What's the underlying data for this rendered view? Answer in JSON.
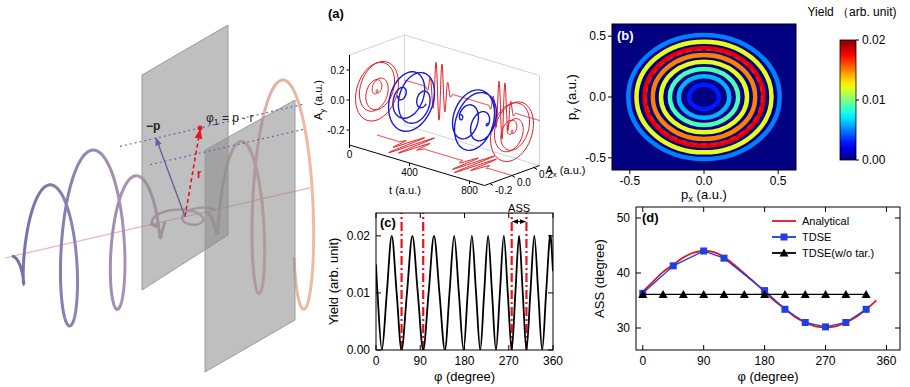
{
  "schematic": {
    "phase_label": {
      "base": "φ",
      "sub": "1",
      "suffix": " = p · r"
    },
    "minus_p": "−p",
    "r": "r"
  },
  "chart_data": [
    {
      "type": "line3d",
      "panel_label": "(a)",
      "xlabel": "t (a.u.)",
      "xlim": [
        0,
        900
      ],
      "xticks": [
        0,
        400,
        800
      ],
      "ylabel": {
        "base": "A",
        "sub": "x",
        "suffix": " (a.u.)"
      },
      "ylim": [
        -0.25,
        0.25
      ],
      "yticks": [
        -0.2,
        {
          "value": 0,
          "label": "0.0"
        },
        0.2
      ],
      "zlabel": {
        "base": "A",
        "sub": "y",
        "suffix": " (a.u.)"
      },
      "zlim": [
        -0.3,
        0.3
      ],
      "zticks": [
        -0.2,
        {
          "value": 0,
          "label": "0.0"
        },
        0.2
      ],
      "pulses": [
        {
          "center": 230,
          "duration": 200,
          "amplitude": 0.2,
          "period": 40,
          "helicity": 1,
          "color": "#1a1ad8"
        },
        {
          "center": 650,
          "duration": 200,
          "amplitude": 0.2,
          "period": 40,
          "helicity": -1,
          "color": "#1a1ad8"
        }
      ],
      "projections": {
        "color": "#e51c23"
      }
    },
    {
      "type": "heatmap",
      "panel_label": "(b)",
      "title": "Yield （arb. unit)",
      "xlabel": {
        "base": "p",
        "sub": "x",
        "suffix": " (a.u.)"
      },
      "ylabel": {
        "base": "p",
        "sub": "y",
        "suffix": " (a.u.)"
      },
      "xlim": [
        -0.62,
        0.62
      ],
      "xticks": [
        {
          "value": -0.5,
          "label": "-0.5"
        },
        {
          "value": 0,
          "label": "0.0"
        },
        {
          "value": 0.5,
          "label": "0.5"
        }
      ],
      "ylim": [
        -0.6,
        0.6
      ],
      "yticks": [
        {
          "value": -0.5,
          "label": "-0.5"
        },
        {
          "value": 0,
          "label": "0.0"
        },
        {
          "value": 0.5,
          "label": "0.5"
        }
      ],
      "rings": [
        {
          "radius": 0.1,
          "value": 0.003
        },
        {
          "radius": 0.17,
          "value": 0.006
        },
        {
          "radius": 0.23,
          "value": 0.009
        },
        {
          "radius": 0.29,
          "value": 0.012
        },
        {
          "radius": 0.345,
          "value": 0.015
        },
        {
          "radius": 0.4,
          "value": 0.018
        },
        {
          "radius": 0.455,
          "value": 0.012
        },
        {
          "radius": 0.51,
          "value": 0.005
        }
      ],
      "marker_circle": {
        "radius": 0.39,
        "color": "#e8141b",
        "line_style": "dashed"
      },
      "colorbar": {
        "range": [
          0,
          0.02
        ],
        "ticks": [
          {
            "value": 0,
            "label": "0.00"
          },
          {
            "value": 0.01,
            "label": "0.01"
          },
          {
            "value": 0.02,
            "label": "0.02"
          }
        ]
      }
    },
    {
      "type": "line",
      "panel_label": "(c)",
      "xlabel": "φ (degree)",
      "ylabel": "Yield (arb. unit)",
      "x": [
        0,
        3,
        12,
        22,
        32,
        42,
        52,
        63,
        74,
        85,
        96,
        107,
        118,
        129,
        140,
        149.5,
        159,
        168.5,
        178,
        186.5,
        195,
        203.5,
        212,
        220,
        228,
        236,
        244,
        252,
        260,
        268,
        276,
        283.5,
        291,
        298.5,
        306,
        314,
        322,
        330,
        338,
        346,
        354,
        360
      ],
      "values": [
        0.015,
        0.01,
        0,
        0.01,
        0.02,
        0.01,
        0,
        0.01,
        0.02,
        0.01,
        0,
        0.01,
        0.02,
        0.01,
        0,
        0.01,
        0.02,
        0.01,
        0,
        0.01,
        0.02,
        0.01,
        0,
        0.01,
        0.02,
        0.01,
        0,
        0.01,
        0.02,
        0.01,
        0,
        0.01,
        0.02,
        0.01,
        0,
        0.01,
        0.02,
        0.01,
        0,
        0.01,
        0.02,
        0.0138
      ],
      "color": "#000000",
      "line_style": "solid",
      "xlim": [
        0,
        360
      ],
      "xticks": [
        0,
        90,
        180,
        270,
        360
      ],
      "ylim": [
        0,
        0.024
      ],
      "yticks": [
        {
          "value": 0,
          "label": "0.00"
        },
        {
          "value": 0.01,
          "label": "0.01"
        },
        {
          "value": 0.02,
          "label": "0.02"
        }
      ],
      "vlines": {
        "x": [
          52,
          96,
          276,
          306
        ],
        "color": "#e8141b",
        "line_style": "dashdot"
      },
      "annotation": {
        "text": "ASS",
        "x": [
          276,
          306
        ],
        "y": 0.0225
      }
    },
    {
      "type": "line",
      "panel_label": "(d)",
      "xlabel": "φ (degree)",
      "ylabel": "ASS (degree)",
      "xlim": [
        -10,
        380
      ],
      "xticks": [
        0,
        90,
        180,
        270,
        360
      ],
      "ylim": [
        26,
        52
      ],
      "yticks": [
        30,
        40,
        50
      ],
      "legend": "upper right",
      "series": [
        {
          "name": "Analytical",
          "color": "#e8141b",
          "marker": "none",
          "line_style": "solid",
          "x": [
            0,
            15,
            30,
            45,
            60,
            75,
            90,
            105,
            120,
            135,
            150,
            165,
            180,
            195,
            210,
            225,
            240,
            255,
            270,
            285,
            300,
            315,
            330,
            345
          ],
          "values": [
            36.6,
            38.4,
            40.2,
            41.5,
            42.8,
            43.7,
            44.0,
            43.8,
            42.9,
            41.5,
            39.9,
            38.3,
            36.6,
            34.9,
            33.5,
            32.0,
            31.0,
            30.3,
            30.1,
            30.3,
            31.0,
            32.0,
            33.4,
            35.0
          ]
        },
        {
          "name": "TDSE",
          "color": "#1f3fe0",
          "marker": "square",
          "line_style": "solid",
          "x": [
            0,
            45,
            90,
            120,
            180,
            210,
            240,
            270,
            300,
            330
          ],
          "values": [
            36.3,
            41.3,
            44.0,
            42.7,
            36.8,
            33.4,
            31.0,
            30.2,
            31.0,
            33.4
          ]
        },
        {
          "name": "TDSE(w/o tar.)",
          "color": "#000000",
          "marker": "triangle",
          "line_style": "solid",
          "x": [
            0,
            30,
            60,
            90,
            120,
            150,
            180,
            210,
            240,
            270,
            300,
            330
          ],
          "values": [
            36.1,
            36.1,
            36.1,
            36.1,
            36.1,
            36.1,
            36.1,
            36.1,
            36.1,
            36.1,
            36.1,
            36.1
          ]
        }
      ]
    }
  ]
}
